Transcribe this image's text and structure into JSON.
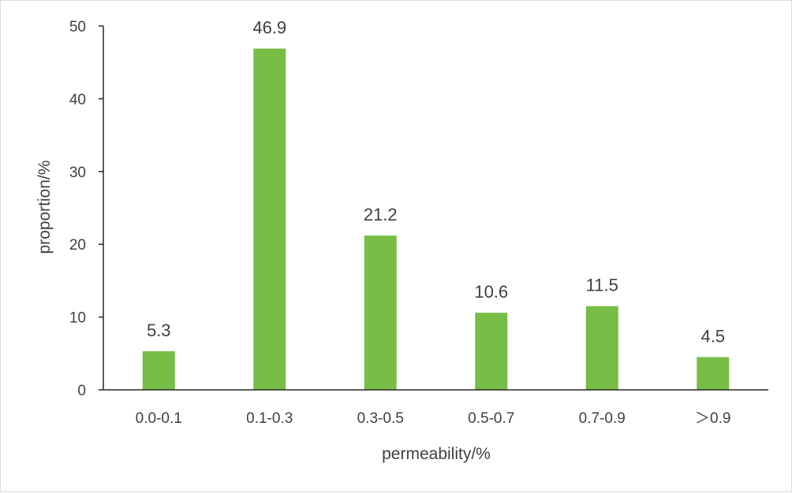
{
  "chart_data": {
    "type": "bar",
    "categories": [
      "0.0-0.1",
      "0.1-0.3",
      "0.3-0.5",
      "0.5-0.7",
      "0.7-0.9",
      "＞0.9"
    ],
    "values": [
      5.3,
      46.9,
      21.2,
      10.6,
      11.5,
      4.5
    ],
    "data_labels": [
      "5.3",
      "46.9",
      "21.2",
      "10.6",
      "11.5",
      "4.5"
    ],
    "xlabel": "permeability/%",
    "ylabel": "proportion/%",
    "ylim": [
      0,
      50
    ],
    "yticks": [
      0,
      10,
      20,
      30,
      40,
      50
    ],
    "ytick_labels": [
      "0",
      "10",
      "20",
      "30",
      "40",
      "50"
    ],
    "grid": false,
    "legend": "none",
    "colors": {
      "bar": "#77bd46",
      "axis": "#262626",
      "text": "#404040",
      "border": "#d9d9d9"
    }
  }
}
